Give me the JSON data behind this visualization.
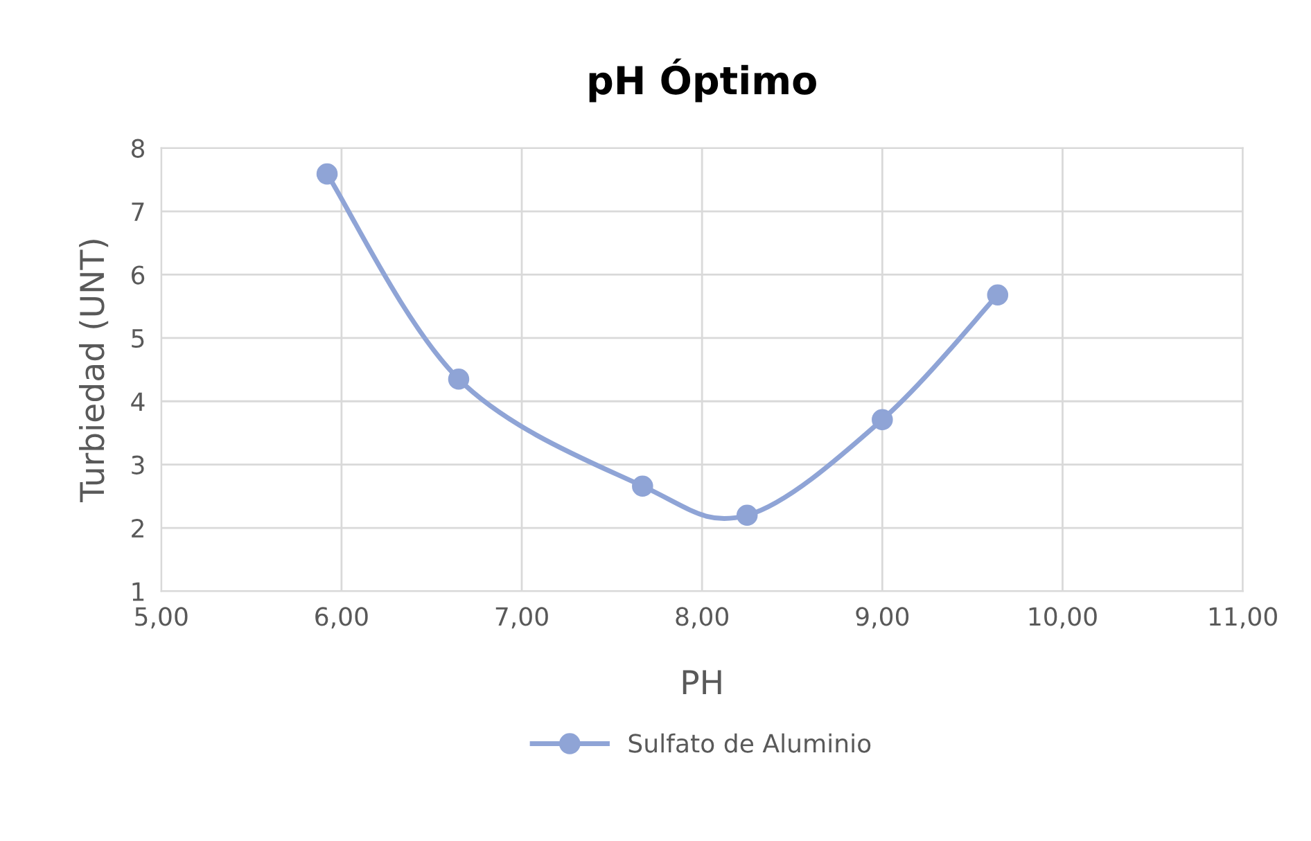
{
  "chart_data": {
    "type": "line",
    "title": "pH Óptimo",
    "xlabel": "PH",
    "ylabel": "Turbiedad (UNT)",
    "xlim": [
      5,
      11
    ],
    "xticks": [
      {
        "value": 5,
        "label": "5,00"
      },
      {
        "value": 6,
        "label": "6,00"
      },
      {
        "value": 7,
        "label": "7,00"
      },
      {
        "value": 8,
        "label": "8,00"
      },
      {
        "value": 9,
        "label": "9,00"
      },
      {
        "value": 10,
        "label": "10,00"
      },
      {
        "value": 11,
        "label": "11,00"
      }
    ],
    "ylim": [
      1,
      8
    ],
    "yticks": [
      1,
      2,
      3,
      4,
      5,
      6,
      7,
      8
    ],
    "grid": true,
    "legend": "bottom",
    "marker": "circle",
    "line_style": "solid",
    "series": [
      {
        "name": "Sulfato de Aluminio",
        "color": "#8fa4d6",
        "x": [
          5.92,
          6.65,
          7.67,
          8.25,
          9.0,
          9.64
        ],
        "values": [
          7.59,
          4.35,
          2.66,
          2.2,
          3.71,
          5.68
        ]
      }
    ]
  }
}
